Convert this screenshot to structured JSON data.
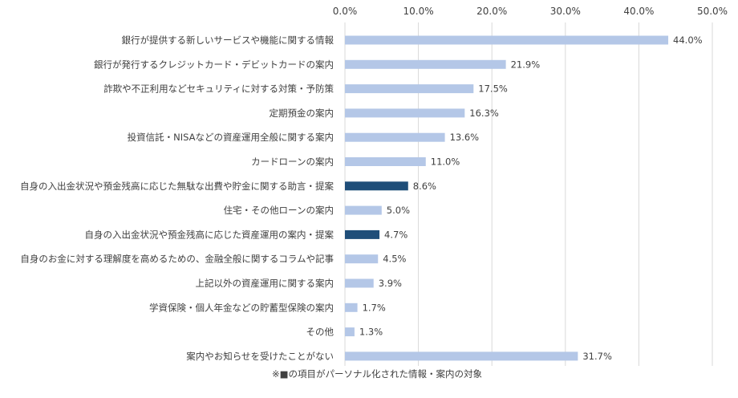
{
  "chart_data": {
    "type": "bar",
    "orientation": "horizontal",
    "categories": [
      "銀行が提供する新しいサービスや機能に関する情報",
      "銀行が発行するクレジットカード・デビットカードの案内",
      "詐欺や不正利用などセキュリティに対する対策・予防策",
      "定期預金の案内",
      "投資信託・NISAなどの資産運用全般に関する案内",
      "カードローンの案内",
      "自身の入出金状況や預金残高に応じた無駄な出費や貯金に関する助言・提案",
      "住宅・その他ローンの案内",
      "自身の入出金状況や預金残高に応じた資産運用の案内・提案",
      "自身のお金に対する理解度を高めるための、金融全般に関するコラムや記事",
      "上記以外の資産運用に関する案内",
      "学資保険・個人年金などの貯蓄型保険の案内",
      "その他",
      "案内やお知らせを受けたことがない"
    ],
    "values": [
      44.0,
      21.9,
      17.5,
      16.3,
      13.6,
      11.0,
      8.6,
      5.0,
      4.7,
      4.5,
      3.9,
      1.7,
      1.3,
      31.7
    ],
    "value_labels": [
      "44.0%",
      "21.9%",
      "17.5%",
      "16.3%",
      "13.6%",
      "11.0%",
      "8.6%",
      "5.0%",
      "4.7%",
      "4.5%",
      "3.9%",
      "1.7%",
      "1.3%",
      "31.7%"
    ],
    "highlighted": [
      false,
      false,
      false,
      false,
      false,
      false,
      true,
      false,
      true,
      false,
      false,
      false,
      false,
      false
    ],
    "xlim": [
      0,
      50
    ],
    "x_ticks": [
      "0.0%",
      "10.0%",
      "20.0%",
      "30.0%",
      "40.0%",
      "50.0%"
    ],
    "x_axis_position": "top",
    "grid": true,
    "colors": {
      "bar": "#B4C7E7",
      "highlight": "#1F4E79",
      "grid": "#D9D9D9",
      "text": "#404040"
    },
    "footnote": "※■の項目がパーソナル化された情報・案内の対象"
  }
}
